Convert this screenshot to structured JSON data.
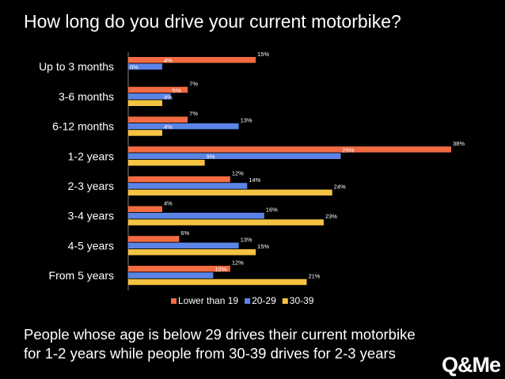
{
  "slide": {
    "title": "How long do you drive your current motorbike?",
    "summary_lines": [
      "People whose age is below 29 drives their current motorbike",
      "for 1-2 years while people from 30-39 drives for 2-3 years"
    ],
    "logo": "Q&Me"
  },
  "chart_data": {
    "type": "bar",
    "orientation": "horizontal",
    "categories": [
      "Up to 3 months",
      "3-6 months",
      "6-12 months",
      "1-2 years",
      "2-3 years",
      "3-4 years",
      "4-5 years",
      "From 5 years"
    ],
    "series": [
      {
        "name": "Lower than 19",
        "color": "#f26b43",
        "values": [
          15,
          7,
          7,
          38,
          12,
          4,
          6,
          12
        ]
      },
      {
        "name": "20-29",
        "color": "#5b84e6",
        "values": [
          4,
          5,
          13,
          25,
          14,
          16,
          13,
          10
        ]
      },
      {
        "name": "30-39",
        "color": "#f5c342",
        "values": [
          0,
          4,
          4,
          9,
          24,
          23,
          15,
          21
        ]
      }
    ],
    "value_suffix": "%",
    "xlim": [
      0,
      38
    ],
    "legend_position": "bottom",
    "grid": false
  }
}
